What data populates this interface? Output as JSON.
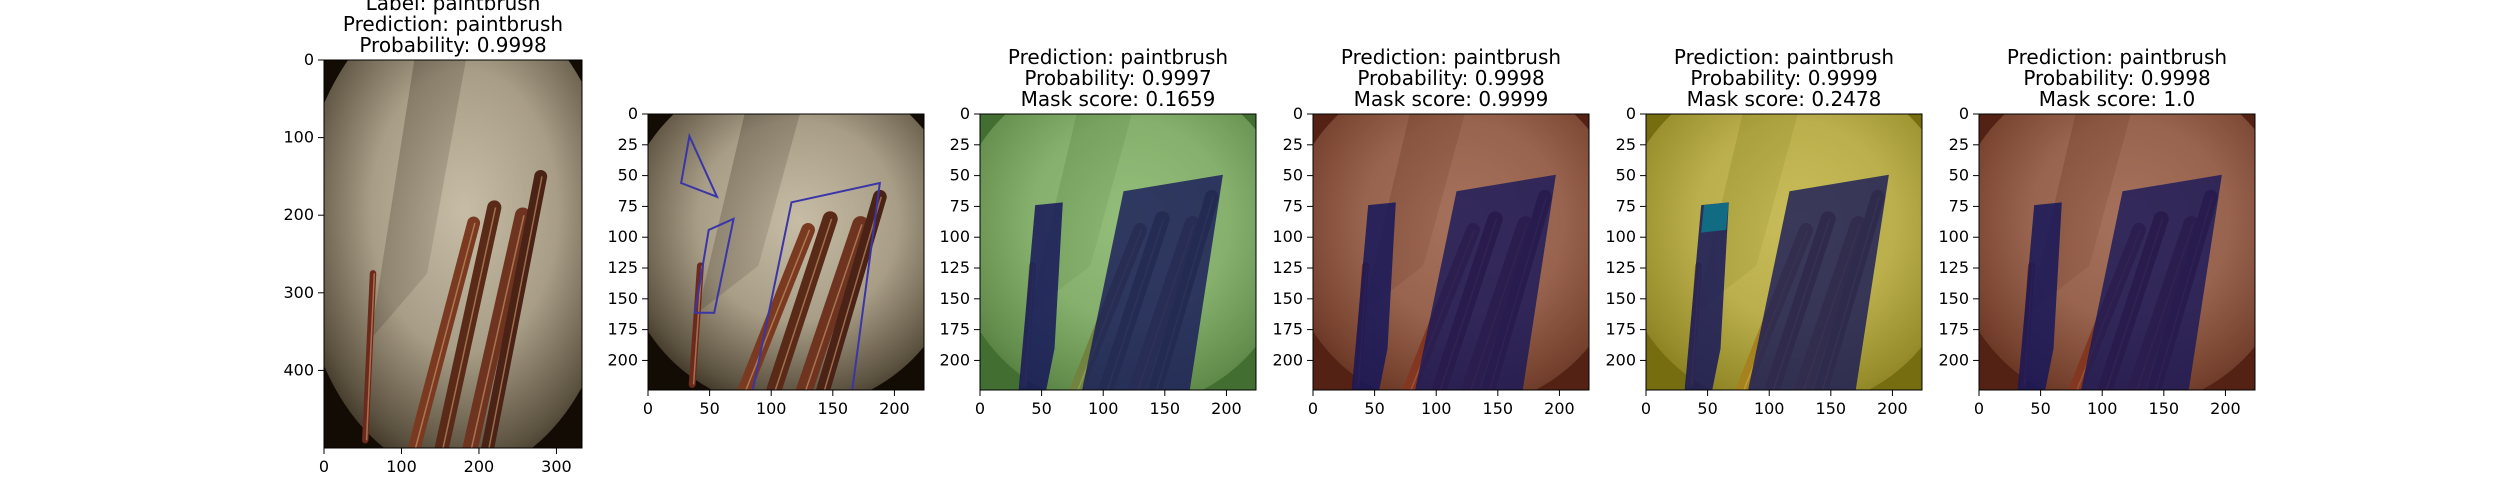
{
  "chart_data": [
    {
      "type": "image",
      "title_lines": [
        "Label: paintbrush",
        "Prediction: paintbrush",
        "Probability: 0.9998"
      ],
      "overlay": "none",
      "xticks": [
        "0",
        "100",
        "200",
        "300"
      ],
      "yticks": [
        "0",
        "100",
        "200",
        "300",
        "400"
      ],
      "xlim": [
        0,
        333
      ],
      "ylim": [
        500,
        0
      ]
    },
    {
      "type": "image",
      "title_lines": [],
      "overlay": "outline",
      "overlay_color": "#3a35a8",
      "xticks": [
        "0",
        "50",
        "100",
        "150",
        "200"
      ],
      "yticks": [
        "0",
        "25",
        "50",
        "75",
        "100",
        "125",
        "150",
        "175",
        "200"
      ],
      "xlim": [
        0,
        224
      ],
      "ylim": [
        224,
        0
      ]
    },
    {
      "type": "image",
      "title_lines": [
        "Prediction: paintbrush",
        "Probability: 0.9997",
        "Mask score: 0.1659"
      ],
      "overlay": "mask",
      "overlay_color": "#6abf58",
      "xticks": [
        "0",
        "50",
        "100",
        "150",
        "200"
      ],
      "yticks": [
        "0",
        "25",
        "50",
        "75",
        "100",
        "125",
        "150",
        "175",
        "200"
      ],
      "xlim": [
        0,
        224
      ],
      "ylim": [
        224,
        0
      ]
    },
    {
      "type": "image",
      "title_lines": [
        "Prediction: paintbrush",
        "Probability: 0.9998",
        "Mask score: 0.9999"
      ],
      "overlay": "mask",
      "overlay_color": "#8a3520",
      "xticks": [
        "0",
        "50",
        "100",
        "150",
        "200"
      ],
      "yticks": [
        "0",
        "25",
        "50",
        "75",
        "100",
        "125",
        "150",
        "175",
        "200"
      ],
      "xlim": [
        0,
        224
      ],
      "ylim": [
        224,
        0
      ]
    },
    {
      "type": "image",
      "title_lines": [
        "Prediction: paintbrush",
        "Probability: 0.9999",
        "Mask score: 0.2478"
      ],
      "overlay": "mask",
      "overlay_color": "#c9bd1c",
      "xticks": [
        "0",
        "50",
        "100",
        "150",
        "200"
      ],
      "yticks": [
        "0",
        "25",
        "50",
        "75",
        "100",
        "125",
        "150",
        "175",
        "200"
      ],
      "xlim": [
        0,
        224
      ],
      "ylim": [
        224,
        0
      ]
    },
    {
      "type": "image",
      "title_lines": [
        "Prediction: paintbrush",
        "Probability: 0.9998",
        "Mask score: 1.0"
      ],
      "overlay": "mask",
      "overlay_color": "#8a3520",
      "xticks": [
        "0",
        "50",
        "100",
        "150",
        "200"
      ],
      "yticks": [
        "0",
        "25",
        "50",
        "75",
        "100",
        "125",
        "150",
        "175",
        "200"
      ],
      "xlim": [
        0,
        224
      ],
      "ylim": [
        224,
        0
      ]
    }
  ]
}
